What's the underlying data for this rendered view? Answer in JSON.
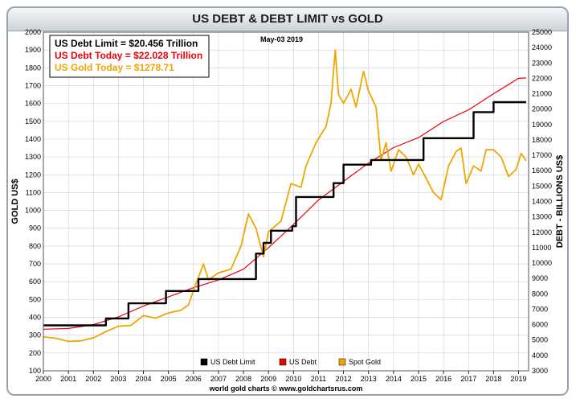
{
  "chart_data": {
    "type": "line",
    "title": "US DEBT & DEBT LIMIT vs GOLD",
    "date_label": "May-03  2019",
    "footer": "world gold charts © www.goldchartsrus.com",
    "xlabel": "",
    "ylabel_left": "GOLD US$",
    "ylabel_right": "DEBT - BILLIONS US$",
    "xlim": [
      2000,
      2019.4
    ],
    "ylim_left": [
      100,
      2000
    ],
    "ylim_right": [
      3000,
      25000
    ],
    "x_ticks": [
      "2000",
      "2001",
      "2002",
      "2003",
      "2004",
      "2005",
      "2006",
      "2007",
      "2008",
      "2009",
      "2010",
      "2011",
      "2012",
      "2013",
      "2014",
      "2015",
      "2016",
      "2017",
      "2018",
      "2019"
    ],
    "y_ticks_left": [
      "100",
      "200",
      "300",
      "400",
      "500",
      "600",
      "700",
      "800",
      "900",
      "1000",
      "1100",
      "1200",
      "1300",
      "1400",
      "1500",
      "1600",
      "1700",
      "1800",
      "1900",
      "2000"
    ],
    "y_ticks_right": [
      "3000",
      "4000",
      "5000",
      "6000",
      "7000",
      "8000",
      "9000",
      "10000",
      "11000",
      "12000",
      "13000",
      "14000",
      "15000",
      "16000",
      "17000",
      "18000",
      "19000",
      "20000",
      "21000",
      "22000",
      "23000",
      "24000",
      "25000"
    ],
    "info_box": [
      {
        "text": "US Debt Limit    = $20.456 Trillion",
        "color": "#000000"
      },
      {
        "text": "US Debt Today = $22.028 Trillion",
        "color": "#e8000b"
      },
      {
        "text": "US Gold Today = $1278.71",
        "color": "#f0a500"
      }
    ],
    "legend_position": "bottom-center",
    "grid": true,
    "series": [
      {
        "name": "US Debt Limit",
        "axis": "right",
        "color": "#000000",
        "style": "step",
        "points": [
          [
            2000.0,
            5950
          ],
          [
            2002.5,
            5950
          ],
          [
            2002.5,
            6400
          ],
          [
            2003.4,
            6400
          ],
          [
            2003.4,
            7384
          ],
          [
            2004.9,
            7384
          ],
          [
            2004.9,
            8184
          ],
          [
            2006.2,
            8184
          ],
          [
            2006.2,
            8965
          ],
          [
            2008.5,
            8965
          ],
          [
            2008.5,
            10615
          ],
          [
            2008.8,
            10615
          ],
          [
            2008.8,
            11315
          ],
          [
            2009.1,
            11315
          ],
          [
            2009.1,
            12104
          ],
          [
            2009.95,
            12104
          ],
          [
            2009.95,
            12394
          ],
          [
            2010.1,
            12394
          ],
          [
            2010.1,
            14294
          ],
          [
            2011.6,
            14294
          ],
          [
            2011.6,
            15194
          ],
          [
            2012.0,
            15194
          ],
          [
            2012.0,
            16394
          ],
          [
            2013.1,
            16394
          ],
          [
            2013.1,
            16699
          ],
          [
            2015.2,
            16699
          ],
          [
            2015.2,
            18113
          ],
          [
            2017.2,
            18113
          ],
          [
            2017.2,
            19808
          ],
          [
            2018.0,
            19808
          ],
          [
            2018.0,
            20456
          ],
          [
            2019.3,
            20456
          ]
        ]
      },
      {
        "name": "US Debt",
        "axis": "right",
        "color": "#e8000b",
        "style": "line",
        "points": [
          [
            2000,
            5700
          ],
          [
            2001,
            5750
          ],
          [
            2002,
            6000
          ],
          [
            2003,
            6500
          ],
          [
            2004,
            7200
          ],
          [
            2005,
            7800
          ],
          [
            2006,
            8400
          ],
          [
            2007,
            8900
          ],
          [
            2008,
            9600
          ],
          [
            2009,
            11000
          ],
          [
            2010,
            12500
          ],
          [
            2011,
            14100
          ],
          [
            2012,
            15300
          ],
          [
            2013,
            16500
          ],
          [
            2014,
            17500
          ],
          [
            2015,
            18150
          ],
          [
            2016,
            19200
          ],
          [
            2017,
            19950
          ],
          [
            2018,
            21000
          ],
          [
            2019,
            22000
          ],
          [
            2019.3,
            22028
          ]
        ]
      },
      {
        "name": "Spot Gold",
        "axis": "left",
        "color": "#f0a500",
        "style": "line",
        "points": [
          [
            2000,
            290
          ],
          [
            2000.5,
            283
          ],
          [
            2001,
            265
          ],
          [
            2001.5,
            268
          ],
          [
            2002,
            285
          ],
          [
            2002.5,
            320
          ],
          [
            2003,
            350
          ],
          [
            2003.5,
            355
          ],
          [
            2004,
            410
          ],
          [
            2004.5,
            395
          ],
          [
            2005,
            425
          ],
          [
            2005.5,
            440
          ],
          [
            2005.8,
            470
          ],
          [
            2006,
            550
          ],
          [
            2006.4,
            700
          ],
          [
            2006.6,
            610
          ],
          [
            2007,
            650
          ],
          [
            2007.5,
            670
          ],
          [
            2007.9,
            800
          ],
          [
            2008.2,
            980
          ],
          [
            2008.5,
            900
          ],
          [
            2008.8,
            740
          ],
          [
            2009,
            880
          ],
          [
            2009.5,
            940
          ],
          [
            2009.9,
            1150
          ],
          [
            2010.3,
            1130
          ],
          [
            2010.5,
            1250
          ],
          [
            2010.9,
            1380
          ],
          [
            2011.3,
            1470
          ],
          [
            2011.5,
            1600
          ],
          [
            2011.67,
            1900
          ],
          [
            2011.8,
            1650
          ],
          [
            2012,
            1600
          ],
          [
            2012.3,
            1680
          ],
          [
            2012.5,
            1580
          ],
          [
            2012.8,
            1780
          ],
          [
            2013,
            1670
          ],
          [
            2013.3,
            1580
          ],
          [
            2013.5,
            1280
          ],
          [
            2013.7,
            1380
          ],
          [
            2013.9,
            1220
          ],
          [
            2014.2,
            1340
          ],
          [
            2014.5,
            1300
          ],
          [
            2014.8,
            1200
          ],
          [
            2015,
            1260
          ],
          [
            2015.3,
            1180
          ],
          [
            2015.6,
            1100
          ],
          [
            2015.9,
            1060
          ],
          [
            2016.2,
            1250
          ],
          [
            2016.5,
            1330
          ],
          [
            2016.7,
            1350
          ],
          [
            2016.9,
            1150
          ],
          [
            2017.2,
            1250
          ],
          [
            2017.5,
            1220
          ],
          [
            2017.7,
            1340
          ],
          [
            2018,
            1340
          ],
          [
            2018.3,
            1300
          ],
          [
            2018.6,
            1190
          ],
          [
            2018.9,
            1230
          ],
          [
            2019.1,
            1320
          ],
          [
            2019.3,
            1278.71
          ]
        ]
      }
    ]
  }
}
